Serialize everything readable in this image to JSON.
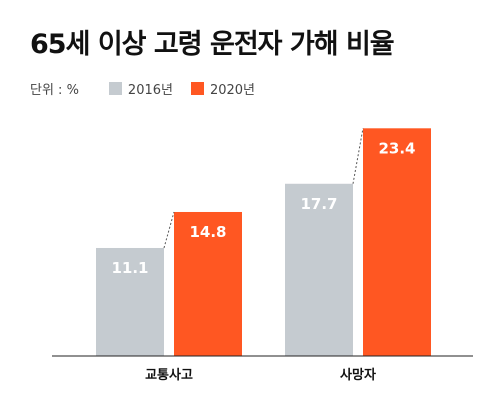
{
  "chart_data": {
    "type": "bar",
    "title": "65세 이상 고령 운전자 가해 비율",
    "unit_label": "단위 : %",
    "categories": [
      "교통사고",
      "사망자"
    ],
    "series": [
      {
        "name": "2016년",
        "color": "#c5cbd0",
        "values": [
          11.1,
          17.7
        ]
      },
      {
        "name": "2020년",
        "color": "#ff5722",
        "values": [
          14.8,
          23.4
        ]
      }
    ],
    "ylim": [
      0,
      26
    ],
    "grid": false,
    "legend": "top-left"
  }
}
